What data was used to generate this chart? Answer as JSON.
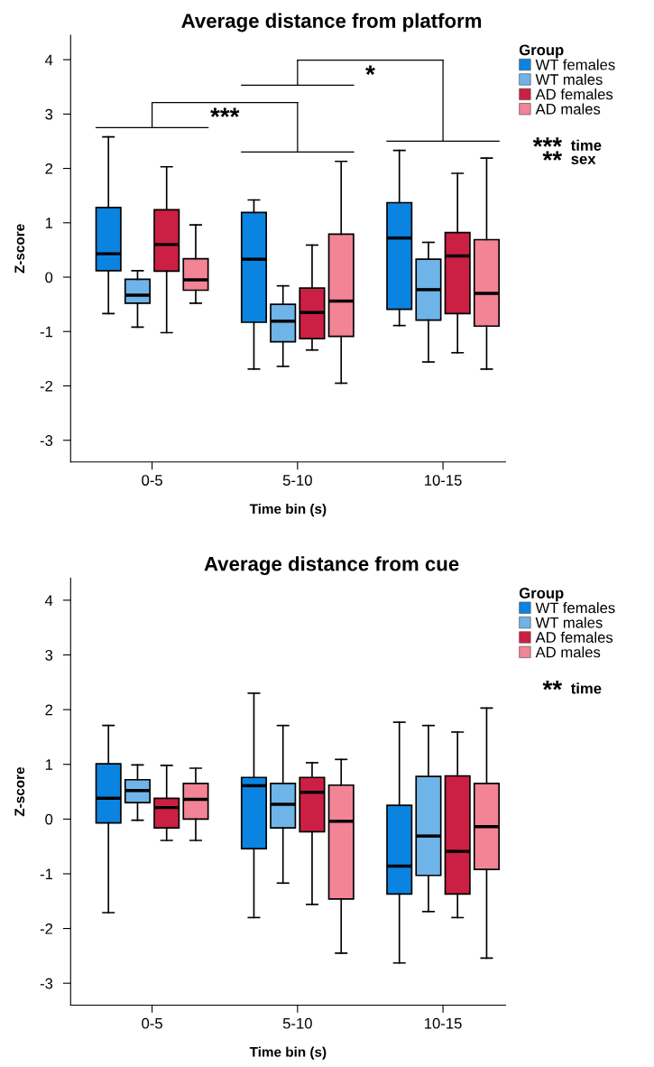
{
  "chart_data": [
    {
      "type": "box",
      "title": "Average distance from platform",
      "xlabel": "Time bin (s)",
      "ylabel": "Z-score",
      "categories": [
        "0-5",
        "5-10",
        "10-15"
      ],
      "ylim": [
        -3.4,
        4.45
      ],
      "yticks": [
        -3,
        -2,
        -1,
        0,
        1,
        2,
        3,
        4
      ],
      "grid": false,
      "legend": "top right",
      "legend_title": "Group",
      "series": [
        {
          "name": "WT females",
          "color": "#0a84e0",
          "boxes": [
            {
              "low": -0.67,
              "q1": 0.12,
              "median": 0.43,
              "q3": 1.28,
              "high": 2.58
            },
            {
              "low": -1.69,
              "q1": -0.83,
              "median": 0.33,
              "q3": 1.19,
              "high": 1.42
            },
            {
              "low": -0.89,
              "q1": -0.59,
              "median": 0.72,
              "q3": 1.37,
              "high": 2.33
            }
          ]
        },
        {
          "name": "WT males",
          "color": "#6eb4e8",
          "boxes": [
            {
              "low": -0.92,
              "q1": -0.48,
              "median": -0.33,
              "q3": -0.04,
              "high": 0.12
            },
            {
              "low": -1.64,
              "q1": -1.19,
              "median": -0.81,
              "q3": -0.5,
              "high": -0.16
            },
            {
              "low": -1.56,
              "q1": -0.79,
              "median": -0.23,
              "q3": 0.33,
              "high": 0.64
            }
          ]
        },
        {
          "name": "AD females",
          "color": "#cc1f44",
          "boxes": [
            {
              "low": -1.02,
              "q1": 0.11,
              "median": 0.6,
              "q3": 1.24,
              "high": 2.03
            },
            {
              "low": -1.34,
              "q1": -1.13,
              "median": -0.65,
              "q3": -0.2,
              "high": 0.59
            },
            {
              "low": -1.39,
              "q1": -0.67,
              "median": 0.39,
              "q3": 0.82,
              "high": 1.91
            }
          ]
        },
        {
          "name": "AD males",
          "color": "#f28496",
          "boxes": [
            {
              "low": -0.48,
              "q1": -0.24,
              "median": -0.05,
              "q3": 0.34,
              "high": 0.96
            },
            {
              "low": -1.95,
              "q1": -1.09,
              "median": -0.44,
              "q3": 0.79,
              "high": 2.13
            },
            {
              "low": -1.69,
              "q1": -0.9,
              "median": -0.3,
              "q3": 0.69,
              "high": 2.19
            }
          ]
        }
      ],
      "annotations": [
        "***",
        "*",
        "*** time",
        "** sex"
      ]
    },
    {
      "type": "box",
      "title": "Average distance from cue",
      "xlabel": "Time bin (s)",
      "ylabel": "Z-score",
      "categories": [
        "0-5",
        "5-10",
        "10-15"
      ],
      "ylim": [
        -3.4,
        4.4
      ],
      "yticks": [
        -3,
        -2,
        -1,
        0,
        1,
        2,
        3,
        4
      ],
      "grid": false,
      "legend": "top right",
      "legend_title": "Group",
      "series": [
        {
          "name": "WT females",
          "color": "#0a84e0",
          "boxes": [
            {
              "low": -1.71,
              "q1": -0.07,
              "median": 0.38,
              "q3": 1.01,
              "high": 1.71
            },
            {
              "low": -1.8,
              "q1": -0.54,
              "median": 0.61,
              "q3": 0.76,
              "high": 2.3
            },
            {
              "low": -2.63,
              "q1": -1.37,
              "median": -0.86,
              "q3": 0.25,
              "high": 1.77
            }
          ]
        },
        {
          "name": "WT males",
          "color": "#6eb4e8",
          "boxes": [
            {
              "low": -0.02,
              "q1": 0.3,
              "median": 0.52,
              "q3": 0.72,
              "high": 0.99
            },
            {
              "low": -1.17,
              "q1": -0.16,
              "median": 0.27,
              "q3": 0.65,
              "high": 1.71
            },
            {
              "low": -1.69,
              "q1": -1.03,
              "median": -0.31,
              "q3": 0.78,
              "high": 1.71
            }
          ]
        },
        {
          "name": "AD females",
          "color": "#cc1f44",
          "boxes": [
            {
              "low": -0.39,
              "q1": -0.16,
              "median": 0.21,
              "q3": 0.38,
              "high": 0.98
            },
            {
              "low": -1.56,
              "q1": -0.23,
              "median": 0.49,
              "q3": 0.76,
              "high": 1.03
            },
            {
              "low": -1.8,
              "q1": -1.37,
              "median": -0.59,
              "q3": 0.79,
              "high": 1.59
            }
          ]
        },
        {
          "name": "AD males",
          "color": "#f28496",
          "boxes": [
            {
              "low": -0.39,
              "q1": 0.0,
              "median": 0.36,
              "q3": 0.65,
              "high": 0.93
            },
            {
              "low": -2.45,
              "q1": -1.46,
              "median": -0.04,
              "q3": 0.62,
              "high": 1.09
            },
            {
              "low": -2.54,
              "q1": -0.92,
              "median": -0.14,
              "q3": 0.65,
              "high": 2.03
            }
          ]
        }
      ],
      "annotations": [
        "** time"
      ]
    }
  ]
}
